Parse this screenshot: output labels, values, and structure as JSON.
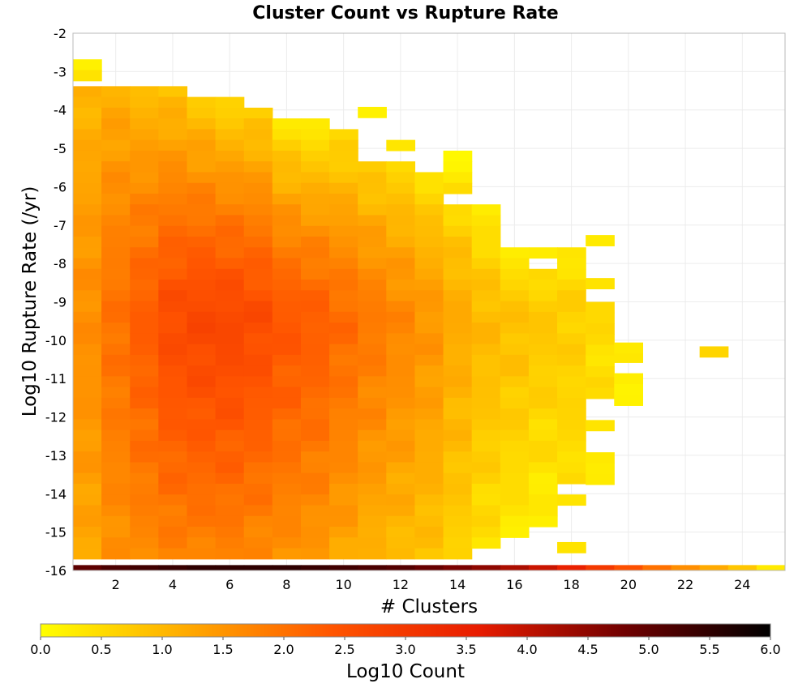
{
  "chart_data": {
    "type": "heatmap",
    "title": "Cluster Count vs Rupture Rate",
    "xlabel": "# Clusters",
    "ylabel": "Log10 Rupture Rate (/yr)",
    "xlim": [
      0.5,
      25.5
    ],
    "ylim": [
      -16,
      -2
    ],
    "x_ticks": [
      2,
      4,
      6,
      8,
      10,
      12,
      14,
      16,
      18,
      20,
      22,
      24
    ],
    "y_ticks": [
      -2,
      -3,
      -4,
      -5,
      -6,
      -7,
      -8,
      -9,
      -10,
      -11,
      -12,
      -13,
      -14,
      -15,
      -16
    ],
    "x_bin_width": 1,
    "y_bin_height": 0.28,
    "grid": true,
    "colorbar": {
      "label": "Log10 Count",
      "range": [
        0,
        6
      ],
      "ticks": [
        "0.0",
        "0.5",
        "1.0",
        "1.5",
        "2.0",
        "2.5",
        "3.0",
        "3.5",
        "4.0",
        "4.5",
        "5.0",
        "5.5",
        "6.0"
      ],
      "colors": [
        "#ffff00",
        "#ffaa00",
        "#ff5500",
        "#e81c00",
        "#700000",
        "#000000"
      ]
    },
    "bottom_row": {
      "y": -15.93,
      "values": [
        5.0,
        5.2,
        5.3,
        5.4,
        5.5,
        5.5,
        5.5,
        5.5,
        5.4,
        5.3,
        5.2,
        5.1,
        4.9,
        4.7,
        4.5,
        4.2,
        3.9,
        3.5,
        3.0,
        2.5,
        2.0,
        1.6,
        1.2,
        0.8,
        0.3
      ]
    },
    "cells": [
      [
        1,
        -2.82,
        0.2
      ],
      [
        1,
        -3.1,
        0.4
      ],
      [
        11,
        -4.06,
        0.2
      ],
      [
        23,
        -10.3,
        0.6
      ],
      [
        18,
        -15.4,
        0.4
      ],
      [
        19,
        -7.4,
        0.3
      ],
      [
        19,
        -8.52,
        0.4
      ],
      [
        20,
        -10.2,
        0.3
      ]
    ],
    "columns": [
      {
        "x": 1,
        "y_min": -15.8,
        "y_max": -3.38,
        "v_top": 1.0,
        "v_mid": 1.6,
        "v_bot": 1.2
      },
      {
        "x": 2,
        "y_min": -15.8,
        "y_max": -3.38,
        "v_top": 1.1,
        "v_mid": 2.0,
        "v_bot": 1.5
      },
      {
        "x": 3,
        "y_min": -15.8,
        "y_max": -3.38,
        "v_top": 0.9,
        "v_mid": 2.3,
        "v_bot": 1.6
      },
      {
        "x": 4,
        "y_min": -15.8,
        "y_max": -3.38,
        "v_top": 0.8,
        "v_mid": 2.6,
        "v_bot": 1.7
      },
      {
        "x": 5,
        "y_min": -15.8,
        "y_max": -3.66,
        "v_top": 0.7,
        "v_mid": 2.7,
        "v_bot": 1.7
      },
      {
        "x": 6,
        "y_min": -15.8,
        "y_max": -3.66,
        "v_top": 0.5,
        "v_mid": 2.7,
        "v_bot": 1.7
      },
      {
        "x": 7,
        "y_min": -15.8,
        "y_max": -3.94,
        "v_top": 0.6,
        "v_mid": 2.6,
        "v_bot": 1.6
      },
      {
        "x": 8,
        "y_min": -15.8,
        "y_max": -4.22,
        "v_top": 0.3,
        "v_mid": 2.4,
        "v_bot": 1.5
      },
      {
        "x": 9,
        "y_min": -15.8,
        "y_max": -4.22,
        "v_top": 0.2,
        "v_mid": 2.3,
        "v_bot": 1.4
      },
      {
        "x": 10,
        "y_min": -15.8,
        "y_max": -4.5,
        "v_top": 0.4,
        "v_mid": 2.1,
        "v_bot": 1.2
      },
      {
        "x": 11,
        "y_min": -15.8,
        "y_max": -5.34,
        "v_top": 0.6,
        "v_mid": 1.9,
        "v_bot": 1.0
      },
      {
        "x": 12,
        "y_min": -15.8,
        "y_max": -4.78,
        "v_top": 0.3,
        "v_mid": 1.7,
        "v_bot": 0.9
      },
      {
        "x": 13,
        "y_min": -15.8,
        "y_max": -5.62,
        "v_top": 0.4,
        "v_mid": 1.5,
        "v_bot": 0.8
      },
      {
        "x": 14,
        "y_min": -15.8,
        "y_max": -5.06,
        "v_top": 0.1,
        "v_mid": 1.2,
        "v_bot": 0.6
      },
      {
        "x": 15,
        "y_min": -15.4,
        "y_max": -6.46,
        "v_top": 0.2,
        "v_mid": 1.0,
        "v_bot": 0.4
      },
      {
        "x": 16,
        "y_min": -15.1,
        "y_max": -7.58,
        "v_top": 0.2,
        "v_mid": 0.9,
        "v_bot": 0.3
      },
      {
        "x": 17,
        "y_min": -14.8,
        "y_max": -7.58,
        "v_top": 0.2,
        "v_mid": 0.8,
        "v_bot": 0.2
      },
      {
        "x": 18,
        "y_min": -14.2,
        "y_max": -7.58,
        "v_top": 0.3,
        "v_mid": 0.7,
        "v_bot": 0.4
      },
      {
        "x": 19,
        "y_min": -13.7,
        "y_max": -9.0,
        "v_top": 0.6,
        "v_mid": 0.5,
        "v_bot": 0.3
      },
      {
        "x": 20,
        "y_min": -11.6,
        "y_max": -10.3,
        "v_top": 0.3,
        "v_mid": 0.4,
        "v_bot": 0.2
      }
    ],
    "column_gaps": [
      [
        12,
        -5.3,
        -5.06
      ],
      [
        14,
        -6.5,
        -6.2
      ],
      [
        17,
        -8.2,
        -8.0
      ],
      [
        18,
        -14.1,
        -13.85
      ],
      [
        19,
        -12.2,
        -11.6
      ],
      [
        19,
        -12.9,
        -12.45
      ],
      [
        19,
        -14.2,
        -13.95
      ],
      [
        20,
        -10.95,
        -10.55
      ]
    ]
  }
}
